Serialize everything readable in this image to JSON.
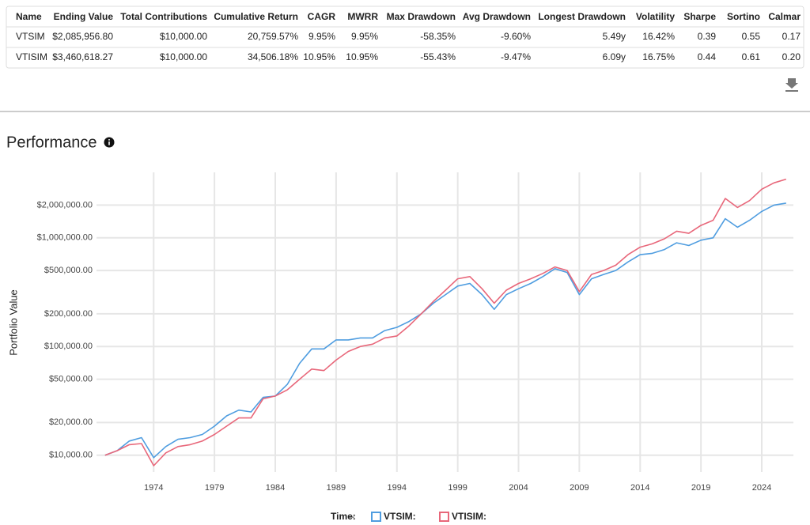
{
  "table": {
    "columns": [
      "Name",
      "Ending Value",
      "Total Contributions",
      "Cumulative Return",
      "CAGR",
      "MWRR",
      "Max Drawdown",
      "Avg Drawdown",
      "Longest Drawdown",
      "Volatility",
      "Sharpe",
      "Sortino",
      "Calmar"
    ],
    "rows": [
      [
        "VTSIM",
        "$2,085,956.80",
        "$10,000.00",
        "20,759.57%",
        "9.95%",
        "9.95%",
        "-58.35%",
        "-9.60%",
        "5.49y",
        "16.42%",
        "0.39",
        "0.55",
        "0.17"
      ],
      [
        "VTISIM",
        "$3,460,618.27",
        "$10,000.00",
        "34,506.18%",
        "10.95%",
        "10.95%",
        "-55.43%",
        "-9.47%",
        "6.09y",
        "16.75%",
        "0.44",
        "0.61",
        "0.20"
      ]
    ]
  },
  "section_title": "Performance",
  "chart_data": {
    "type": "line",
    "ylabel": "Portfolio Value",
    "log_scale": true,
    "grid": true,
    "legend_title": "Time:",
    "legend_value": "–",
    "x": [
      1970,
      1971,
      1972,
      1973,
      1974,
      1975,
      1976,
      1977,
      1978,
      1979,
      1980,
      1981,
      1982,
      1983,
      1984,
      1985,
      1986,
      1987,
      1988,
      1989,
      1990,
      1991,
      1992,
      1993,
      1994,
      1995,
      1996,
      1997,
      1998,
      1999,
      2000,
      2001,
      2002,
      2003,
      2004,
      2005,
      2006,
      2007,
      2008,
      2009,
      2010,
      2011,
      2012,
      2013,
      2014,
      2015,
      2016,
      2017,
      2018,
      2019,
      2020,
      2021,
      2022,
      2023,
      2024,
      2025,
      2026
    ],
    "series": [
      {
        "name": "VTSIM:",
        "color": "#4f9de0",
        "values": [
          10000,
          11000,
          13500,
          14500,
          9500,
          12000,
          14000,
          14500,
          15500,
          18500,
          23000,
          26000,
          25000,
          34000,
          35000,
          45000,
          70000,
          95000,
          95000,
          115000,
          115000,
          120000,
          120000,
          140000,
          150000,
          170000,
          200000,
          250000,
          300000,
          360000,
          380000,
          300000,
          220000,
          300000,
          340000,
          380000,
          440000,
          520000,
          480000,
          300000,
          420000,
          460000,
          500000,
          600000,
          700000,
          720000,
          780000,
          900000,
          850000,
          950000,
          1000000,
          1500000,
          1250000,
          1450000,
          1750000,
          2000000,
          2085956.8
        ]
      },
      {
        "name": "VTISIM:",
        "color": "#e8677a",
        "values": [
          10000,
          11000,
          12500,
          12800,
          8000,
          10500,
          12000,
          12500,
          13500,
          15500,
          18500,
          22000,
          22000,
          33000,
          35000,
          40000,
          50000,
          62000,
          60000,
          75000,
          90000,
          100000,
          105000,
          120000,
          125000,
          155000,
          200000,
          260000,
          330000,
          420000,
          440000,
          340000,
          250000,
          330000,
          380000,
          420000,
          470000,
          540000,
          500000,
          320000,
          460000,
          500000,
          560000,
          700000,
          820000,
          880000,
          980000,
          1150000,
          1100000,
          1300000,
          1450000,
          2300000,
          1900000,
          2200000,
          2800000,
          3200000,
          3460618.27
        ]
      }
    ],
    "xlim": [
      1969.3,
      2026.6
    ],
    "xticks": [
      1974,
      1979,
      1984,
      1989,
      1994,
      1999,
      2004,
      2009,
      2014,
      2019,
      2024
    ],
    "ylim": [
      7000,
      4000000
    ],
    "yticks": [
      {
        "value": 10000,
        "label": "$10,000.00"
      },
      {
        "value": 20000,
        "label": "$20,000.00"
      },
      {
        "value": 50000,
        "label": "$50,000.00"
      },
      {
        "value": 100000,
        "label": "$100,000.00"
      },
      {
        "value": 200000,
        "label": "$200,000.00"
      },
      {
        "value": 500000,
        "label": "$500,000.00"
      },
      {
        "value": 1000000,
        "label": "$1,000,000.00"
      },
      {
        "value": 2000000,
        "label": "$2,000,000.00"
      }
    ]
  }
}
